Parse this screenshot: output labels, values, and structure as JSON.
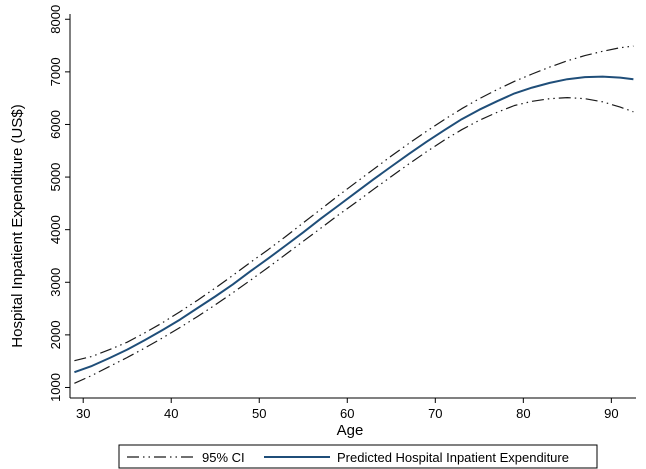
{
  "chart_data": {
    "type": "line",
    "title": "",
    "xlabel": "Age",
    "ylabel": "Hospital Inpatient Expenditure (US$)",
    "xlim": [
      28.5,
      92.8
    ],
    "ylim": [
      800,
      8100
    ],
    "x_ticks": [
      30,
      40,
      50,
      60,
      70,
      80,
      90
    ],
    "y_ticks": [
      1000,
      2000,
      3000,
      4000,
      5000,
      6000,
      7000,
      8000
    ],
    "grid": false,
    "legend_position": "bottom",
    "x": [
      29,
      31,
      33,
      35,
      37,
      39,
      41,
      43,
      45,
      47,
      49,
      51,
      53,
      55,
      57,
      59,
      61,
      63,
      65,
      67,
      69,
      71,
      73,
      75,
      77,
      79,
      81,
      83,
      85,
      87,
      89,
      91,
      92.5
    ],
    "series": [
      {
        "name": "95% CI",
        "role": "upper",
        "color": "#1a1a1a",
        "values": [
          1510,
          1590,
          1720,
          1860,
          2040,
          2230,
          2440,
          2660,
          2890,
          3130,
          3380,
          3620,
          3870,
          4130,
          4390,
          4650,
          4900,
          5150,
          5400,
          5640,
          5870,
          6090,
          6300,
          6490,
          6660,
          6820,
          6960,
          7090,
          7210,
          7310,
          7390,
          7460,
          7490
        ]
      },
      {
        "name": "95% CI",
        "role": "lower",
        "color": "#1a1a1a",
        "values": [
          1080,
          1230,
          1400,
          1570,
          1750,
          1940,
          2140,
          2350,
          2570,
          2800,
          3040,
          3280,
          3530,
          3780,
          4030,
          4280,
          4520,
          4770,
          5010,
          5250,
          5480,
          5700,
          5900,
          6080,
          6230,
          6360,
          6440,
          6490,
          6510,
          6490,
          6430,
          6330,
          6240
        ]
      },
      {
        "name": "Predicted Hospital Inpatient Expenditure",
        "role": "prediction",
        "color": "#1f4e79",
        "values": [
          1290,
          1410,
          1560,
          1720,
          1900,
          2090,
          2290,
          2510,
          2730,
          2960,
          3210,
          3450,
          3700,
          3950,
          4210,
          4460,
          4710,
          4960,
          5200,
          5440,
          5670,
          5890,
          6100,
          6280,
          6440,
          6590,
          6700,
          6790,
          6860,
          6900,
          6910,
          6890,
          6860
        ]
      }
    ]
  },
  "legend": {
    "ci_label": "95% CI",
    "pred_label": "Predicted Hospital Inpatient Expenditure"
  }
}
